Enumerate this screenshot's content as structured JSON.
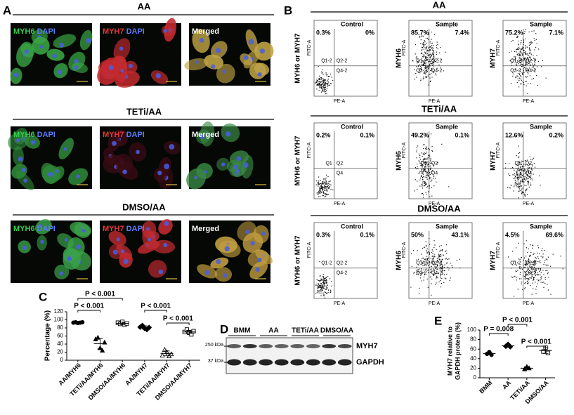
{
  "panel_a": {
    "letter": "A",
    "rows": [
      {
        "title": "AA",
        "images": [
          {
            "marker": "MYH6",
            "stain": "DAPI"
          },
          {
            "marker": "MYH7",
            "stain": "DAPI"
          },
          {
            "label": "Merged"
          }
        ]
      },
      {
        "title": "TETi/AA",
        "images": [
          {
            "marker": "MYH6",
            "stain": "DAPI"
          },
          {
            "marker": "MYH7",
            "stain": "DAPI"
          },
          {
            "label": "Merged"
          }
        ]
      },
      {
        "title": "DMSO/AA",
        "images": [
          {
            "marker": "MYH6",
            "stain": "DAPI"
          },
          {
            "marker": "MYH7",
            "stain": "DAPI"
          },
          {
            "label": "Merged"
          }
        ]
      }
    ]
  },
  "panel_b": {
    "letter": "B",
    "y_axis": "FITC-A",
    "x_axis": "PE-A",
    "rows": [
      {
        "title": "AA",
        "plots": [
          {
            "header": "Control",
            "ylabel": "MYH6 or MYH7",
            "upper_left": "0.3%",
            "upper_right": "0%",
            "gates": [
              "Q1-2",
              "Q2-2",
              "Q4-2"
            ]
          },
          {
            "header": "Sample",
            "ylabel": "MYH6",
            "upper_left": "85.7%",
            "upper_right": "7.4%",
            "gates": [
              "Q1-2",
              "Q2-2",
              "Q3-2",
              "Q4-2"
            ]
          },
          {
            "header": "Sample",
            "ylabel": "MYH7",
            "upper_left": "75.2%",
            "upper_right": "7.1%",
            "gates": [
              "Q1-2",
              "Q2-2",
              "Q3-2",
              "Q4-2"
            ]
          }
        ]
      },
      {
        "title": "TETi/AA",
        "plots": [
          {
            "header": "Control",
            "ylabel": "MYH6 or MYH7",
            "upper_left": "0.2%",
            "upper_right": "0.1%",
            "gates": [
              "Q1",
              "Q2",
              "Q4"
            ]
          },
          {
            "header": "Sample",
            "ylabel": "MYH6",
            "upper_left": "49.2%",
            "upper_right": "0.1%",
            "gates": [
              "Q1",
              "Q2",
              "Q4"
            ]
          },
          {
            "header": "Sample",
            "ylabel": "MYH7",
            "upper_left": "12.6%",
            "upper_right": "0.2%",
            "gates": [
              "Q1",
              "Q2",
              "Q4"
            ]
          }
        ]
      },
      {
        "title": "DMSO/AA",
        "plots": [
          {
            "header": "Control",
            "ylabel": "MYH6 or MYH7",
            "upper_left": "0.3%",
            "upper_right": "0.1%",
            "gates": [
              "Q1-2",
              "Q2-2",
              "Q4-2"
            ]
          },
          {
            "header": "Sample",
            "ylabel": "MYH6",
            "upper_left": "50%",
            "upper_right": "43.1%",
            "gates": [
              "Q1-2",
              "Q2-2",
              "Q3-2",
              "Q4-2"
            ]
          },
          {
            "header": "Sample",
            "ylabel": "MYH7",
            "upper_left": "4.5%",
            "upper_right": "69.6%",
            "gates": [
              "Q1-2",
              "Q2-2",
              "Q4-2"
            ]
          }
        ]
      }
    ]
  },
  "panel_c": {
    "letter": "C",
    "type": "scatter",
    "ylabel": "Percentage (%)",
    "ylim": [
      0,
      120
    ],
    "yticks": [
      0,
      20,
      40,
      60,
      80,
      100,
      120
    ],
    "groups": [
      {
        "name": "AA/MYH6",
        "marker": "circle",
        "filled": true,
        "values": [
          93,
          94,
          92,
          93,
          94
        ],
        "mean": 93,
        "sd": 1
      },
      {
        "name": "TETi/AA/MYH6",
        "marker": "triangle",
        "filled": true,
        "values": [
          52,
          56,
          30,
          24,
          44
        ],
        "mean": 41,
        "sd": 13
      },
      {
        "name": "DMSO/AA/MYH6",
        "marker": "square",
        "filled": false,
        "values": [
          93,
          90,
          95,
          88,
          91
        ],
        "mean": 91,
        "sd": 3
      },
      {
        "name": "AA/MYH7",
        "marker": "diamond",
        "filled": true,
        "values": [
          82,
          86,
          79,
          76,
          81
        ],
        "mean": 81,
        "sd": 4
      },
      {
        "name": "TETi/AA/MYH7",
        "marker": "triangle",
        "filled": false,
        "values": [
          12,
          26,
          20,
          10,
          15
        ],
        "mean": 17,
        "sd": 6
      },
      {
        "name": "DMSO/AA/MYH7",
        "marker": "square",
        "filled": false,
        "values": [
          70,
          76,
          68,
          64,
          72
        ],
        "mean": 70,
        "sd": 4
      }
    ],
    "annotations": [
      {
        "text": "P < 0.001"
      },
      {
        "text": "P < 0.001"
      },
      {
        "text": "P < 0.001"
      },
      {
        "text": "P < 0.001"
      }
    ]
  },
  "panel_d": {
    "letter": "D",
    "groups": [
      "BMM",
      "AA",
      "TETi/AA",
      "DMSO/AA"
    ],
    "bands": [
      {
        "size": "250 kDa",
        "protein": "MYH7"
      },
      {
        "size": "37 kDa",
        "protein": "GAPDH"
      }
    ]
  },
  "panel_e": {
    "letter": "E",
    "type": "scatter",
    "ylabel_lines": [
      "MYH7 relative to",
      "GAPDH protein (%)"
    ],
    "ylim": [
      0,
      100
    ],
    "yticks": [
      0,
      20,
      40,
      60,
      80,
      100
    ],
    "groups": [
      {
        "name": "BMM",
        "marker": "circle",
        "filled": true,
        "values": [
          50,
          54,
          48
        ],
        "mean": 51,
        "sd": 3
      },
      {
        "name": "AA",
        "marker": "diamond",
        "filled": true,
        "values": [
          66,
          70,
          65
        ],
        "mean": 67,
        "sd": 3
      },
      {
        "name": "TETi/AA",
        "marker": "triangle",
        "filled": true,
        "values": [
          18,
          23,
          20
        ],
        "mean": 20,
        "sd": 3
      },
      {
        "name": "DMSO/AA",
        "marker": "square",
        "filled": false,
        "values": [
          55,
          63,
          52
        ],
        "mean": 57,
        "sd": 6
      }
    ],
    "annotations": [
      {
        "text": "P < 0.001"
      },
      {
        "text": "P = 0.008"
      },
      {
        "text": "P < 0.001"
      }
    ]
  }
}
